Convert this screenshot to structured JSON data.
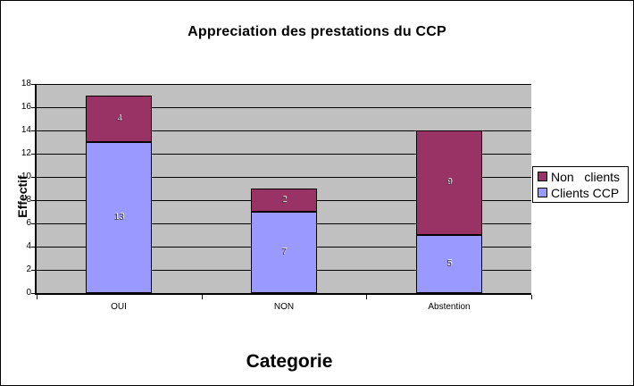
{
  "chart_data": {
    "type": "bar",
    "stacked": true,
    "title": "Appreciation des prestations du CCP",
    "xlabel": "Categorie",
    "ylabel": "Effectif",
    "categories": [
      "OUI",
      "NON",
      "Abstention"
    ],
    "series": [
      {
        "name": "Clients CCP",
        "color": "#9999FF",
        "values": [
          13,
          7,
          5
        ]
      },
      {
        "name": "Non clients",
        "color": "#993366",
        "values": [
          4,
          2,
          9
        ]
      }
    ],
    "totals": [
      17,
      9,
      14
    ],
    "ylim": [
      0,
      18
    ],
    "yticks": [
      0,
      2,
      4,
      6,
      8,
      10,
      12,
      14,
      16,
      18
    ],
    "grid": true,
    "legend": {
      "position": "right",
      "entries": [
        {
          "label": "Non   clients",
          "series": "Non clients",
          "color": "#993366"
        },
        {
          "label": "Clients CCP",
          "series": "Clients CCP",
          "color": "#9999FF"
        }
      ]
    },
    "colors": {
      "chart_bg": "#FFFFFF",
      "plot_bg": "#C0C0C0",
      "gridline": "#000000",
      "data_label": "#3D3D3D"
    }
  }
}
